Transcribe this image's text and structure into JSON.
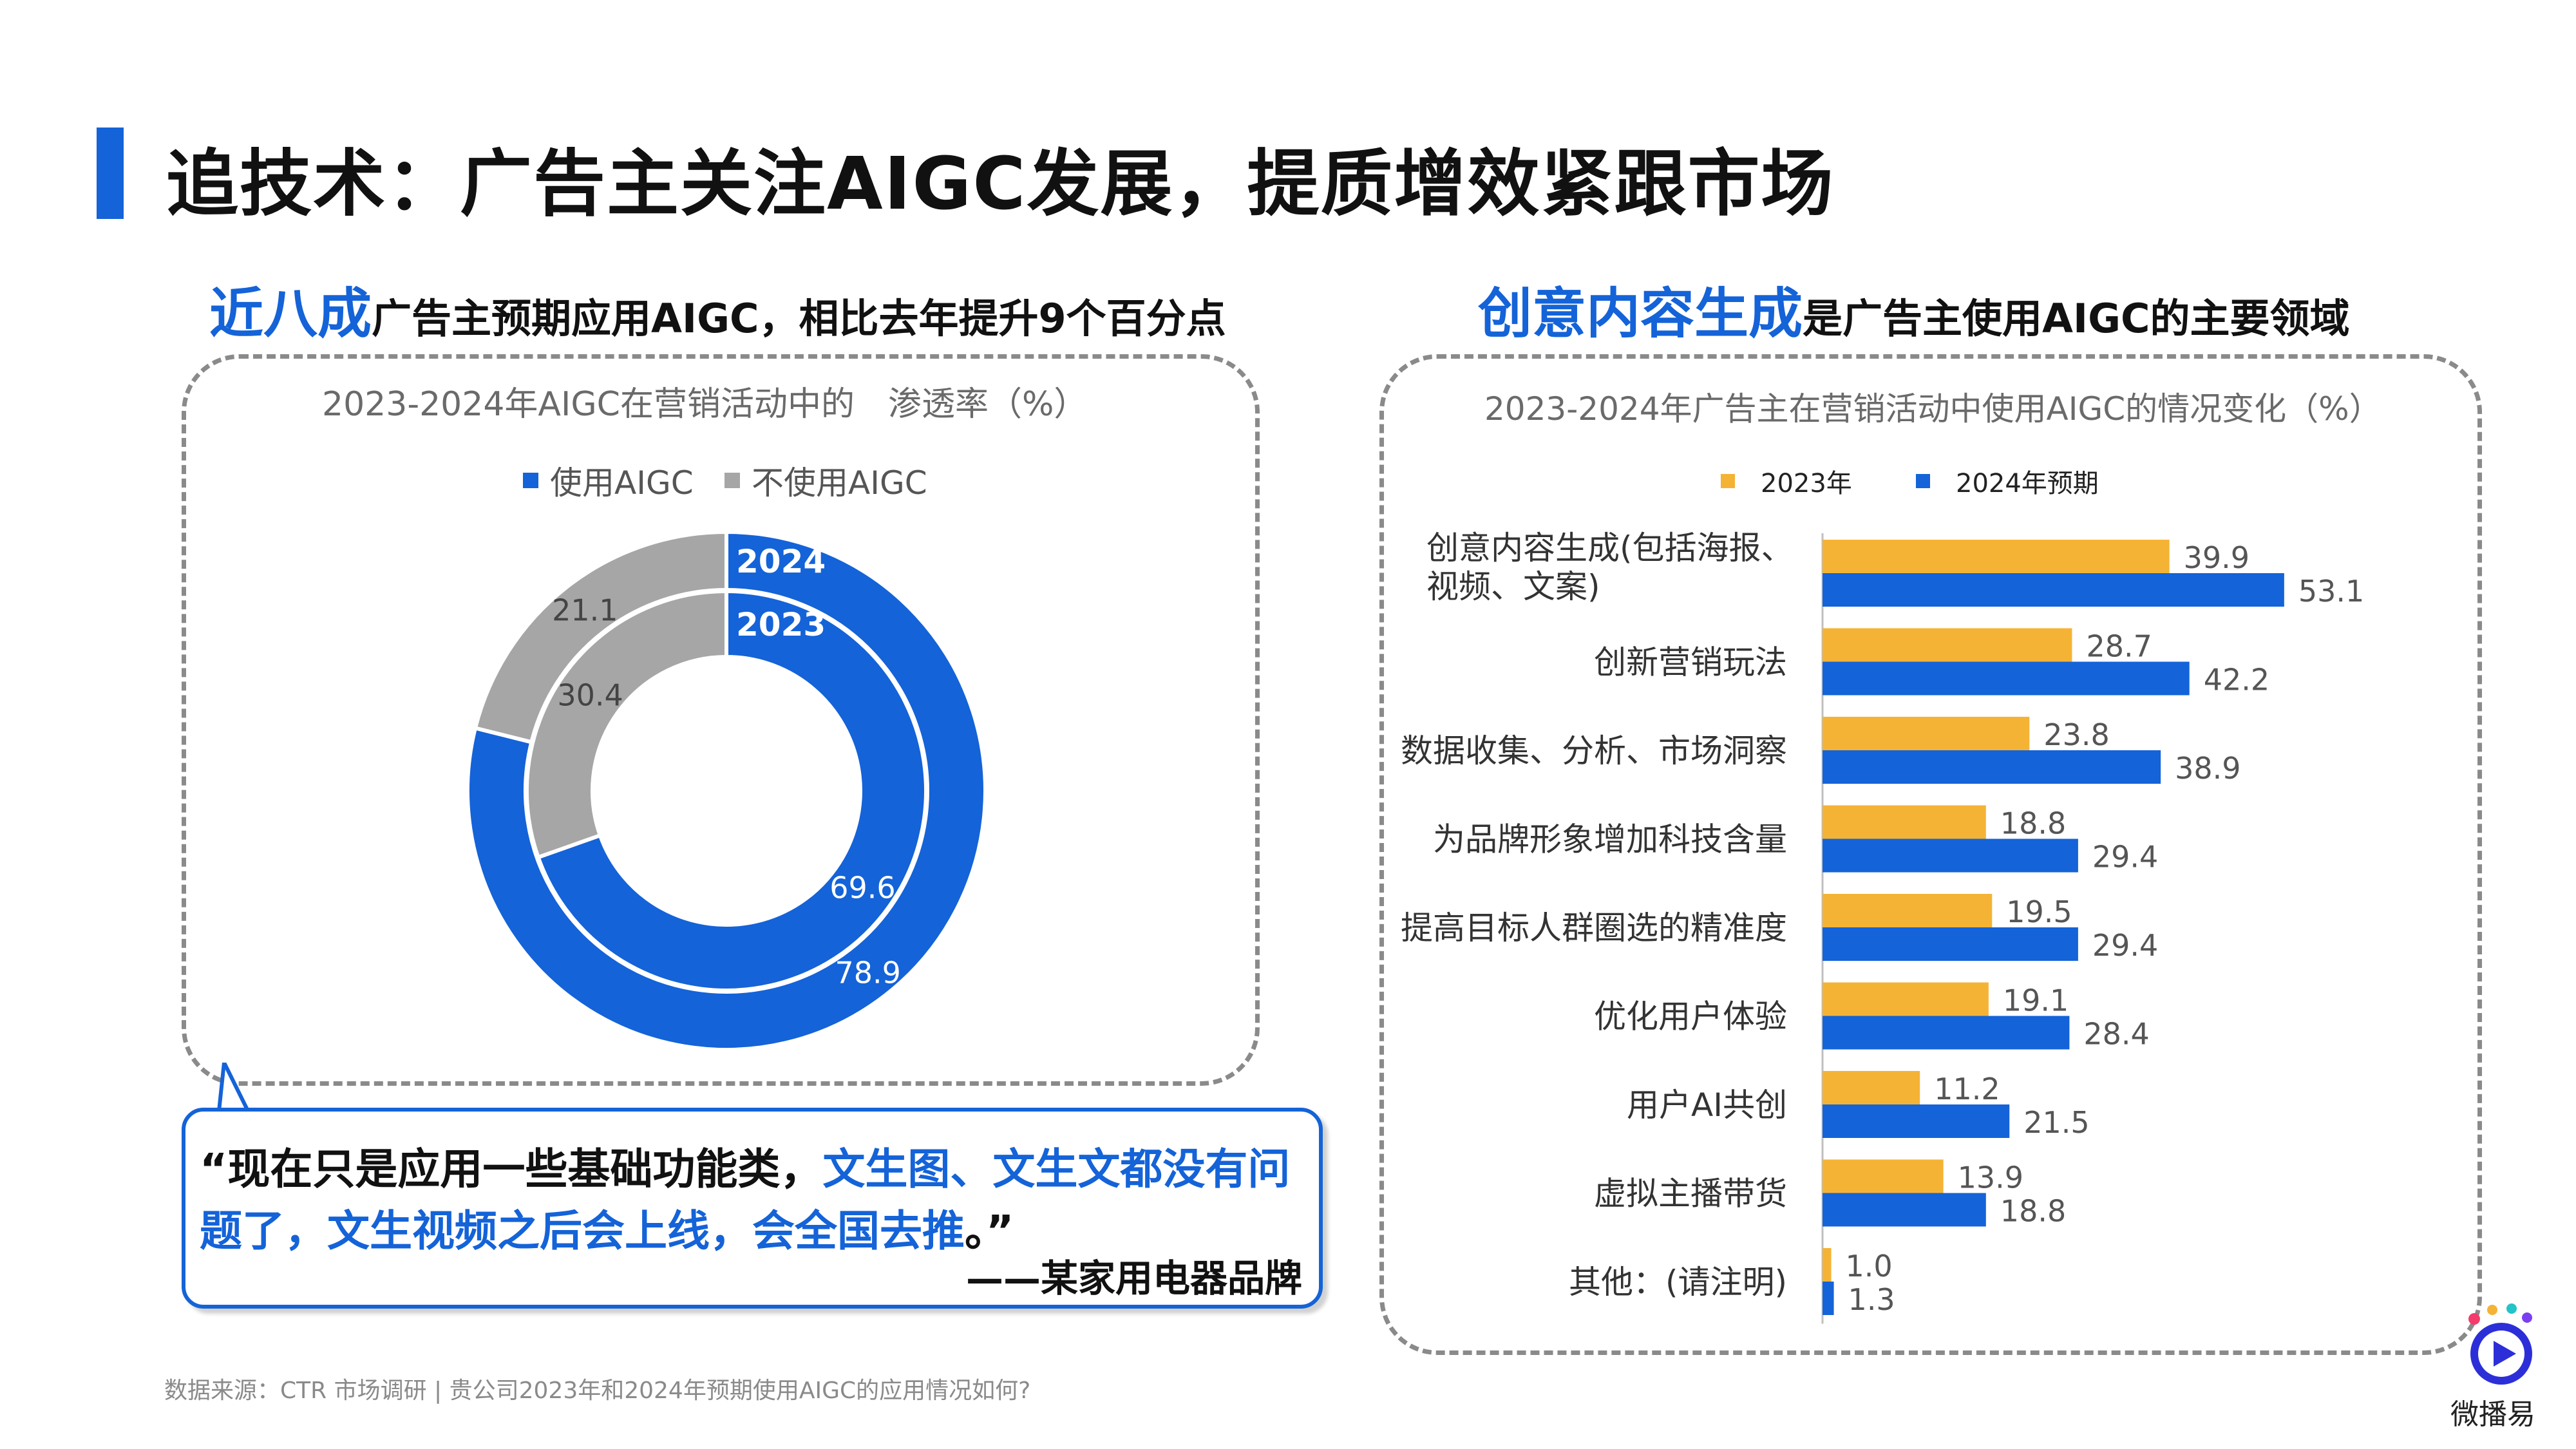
{
  "header": {
    "title": "追技术：广告主关注AIGC发展，提质增效紧跟市场"
  },
  "left_section": {
    "heading_highlight": "近八成",
    "heading_rest": "广告主预期应用AIGC，相比去年提升9个百分点",
    "chart_title": "2023-2024年AIGC在营销活动中的　渗透率（%）",
    "legend": [
      "使用AIGC",
      "不使用AIGC"
    ],
    "ring_labels": [
      "2024",
      "2023"
    ]
  },
  "right_section": {
    "heading_highlight": "创意内容生成",
    "heading_rest": "是广告主使用AIGC的主要领域",
    "chart_title": "2023-2024年广告主在营销活动中使用AIGC的情况变化（%）",
    "legend": [
      "2023年",
      "2024年预期"
    ]
  },
  "quote": {
    "open": "“现在只是应用一些基础功能类，",
    "blue1": "文生图、文生文都没有问题了，文生视频之后会上线，会全国去推",
    "close": "。”",
    "attribution": "——某家用电器品牌"
  },
  "footer": {
    "source": "数据来源：CTR 市场调研 | 贵公司2023年和2024年预期使用AIGC的应用情况如何?",
    "brand": "微播易"
  },
  "colors": {
    "blue": "#1463d8",
    "gray": "#a6a6a6",
    "orange": "#f5b335"
  },
  "chart_data": [
    {
      "type": "pie",
      "subtype": "donut",
      "title": "2023-2024年AIGC在营销活动中的　渗透率（%）",
      "rings": [
        {
          "name": "2024",
          "values": [
            {
              "label": "使用AIGC",
              "value": 78.9
            },
            {
              "label": "不使用AIGC",
              "value": 21.1
            }
          ]
        },
        {
          "name": "2023",
          "values": [
            {
              "label": "使用AIGC",
              "value": 69.6
            },
            {
              "label": "不使用AIGC",
              "value": 30.4
            }
          ]
        }
      ]
    },
    {
      "type": "bar",
      "orientation": "horizontal",
      "title": "2023-2024年广告主在营销活动中使用AIGC的情况变化（%）",
      "categories": [
        "创意内容生成(包括海报、视频、文案)",
        "创新营销玩法",
        "数据收集、分析、市场洞察",
        "为品牌形象增加科技含量",
        "提高目标人群圈选的精准度",
        "优化用户体验",
        "用户AI共创",
        "虚拟主播带货",
        "其他：(请注明)"
      ],
      "series": [
        {
          "name": "2023年",
          "values": [
            39.9,
            28.7,
            23.8,
            18.8,
            19.5,
            19.1,
            11.2,
            13.9,
            1.0
          ]
        },
        {
          "name": "2024年预期",
          "values": [
            53.1,
            42.2,
            38.9,
            29.4,
            29.4,
            28.4,
            21.5,
            18.8,
            1.3
          ]
        }
      ],
      "legend_position": "top"
    }
  ]
}
